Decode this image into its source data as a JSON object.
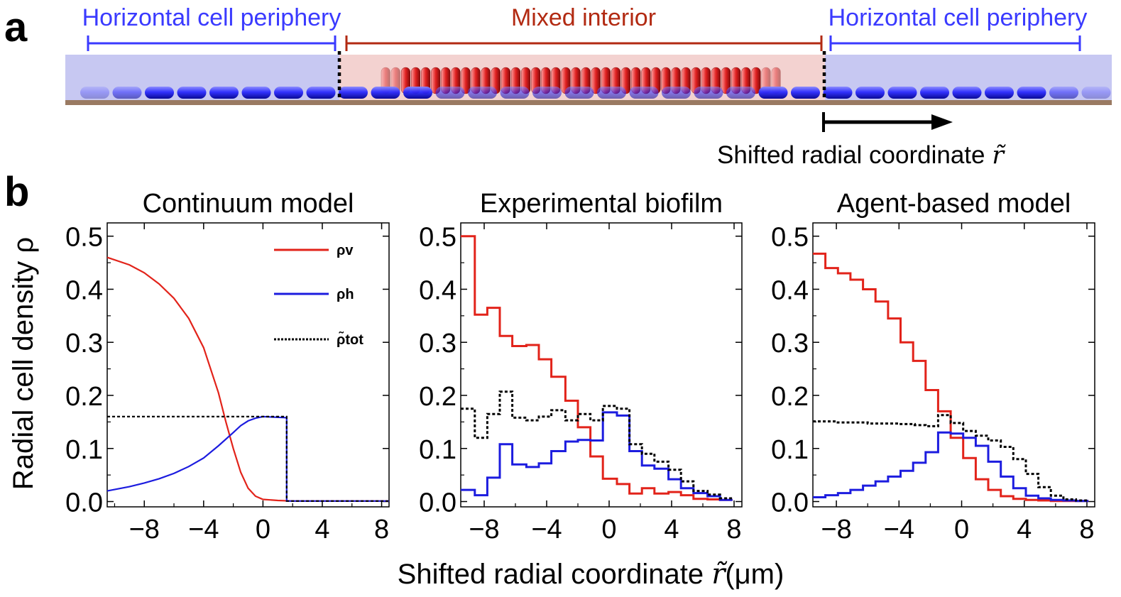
{
  "panel_a": {
    "label": "a",
    "left_region": "Horizontal cell periphery",
    "center_region": "Mixed interior",
    "right_region": "Horizontal cell periphery",
    "arrow_caption": "Shifted radial coordinate",
    "arrow_symbol": "r̃",
    "colors": {
      "periphery": "#3a3aff",
      "interior": "#b22a12",
      "arrow": "#000000"
    }
  },
  "panel_b": {
    "label": "b"
  },
  "shared": {
    "ylabel": "Radial cell density ρ",
    "xlabel": "Shifted radial coordinate",
    "xlabel_symbol": "r̃",
    "xlabel_unit": "(μm)",
    "colors": {
      "vertical": "#e2231a",
      "horizontal": "#1c1cdf",
      "total": "#000000"
    }
  },
  "legend": {
    "items": [
      {
        "name": "vertical",
        "label": "ρv"
      },
      {
        "name": "horizontal",
        "label": "ρh"
      },
      {
        "name": "total",
        "label": "ρ̃tot"
      }
    ]
  },
  "chart_data": [
    {
      "type": "line",
      "title": "Continuum model",
      "xlim": [
        -10.5,
        8.5
      ],
      "ylim": [
        -0.01,
        0.525
      ],
      "xticks": [
        -8,
        -4,
        0,
        4,
        8
      ],
      "xtick_labels": [
        "−8",
        "−4",
        "0",
        "4",
        "8"
      ],
      "yticks": [
        0,
        0.1,
        0.2,
        0.3,
        0.4,
        0.5
      ],
      "ytick_labels": [
        "0.0",
        "0.1",
        "0.2",
        "0.3",
        "0.4",
        "0.5"
      ],
      "series": [
        {
          "name": "rho_v",
          "style": "solid",
          "color": "#e2231a",
          "x": [
            -10.5,
            -9,
            -8,
            -7,
            -6,
            -5,
            -4,
            -3,
            -2.5,
            -2,
            -1.5,
            -1,
            -0.5,
            0,
            1,
            2,
            4,
            8.5
          ],
          "y": [
            0.46,
            0.446,
            0.431,
            0.41,
            0.383,
            0.345,
            0.29,
            0.205,
            0.15,
            0.1,
            0.055,
            0.025,
            0.01,
            0.004,
            0.002,
            0.001,
            0.001,
            0.001
          ]
        },
        {
          "name": "rho_h",
          "style": "solid",
          "color": "#1c1cdf",
          "x": [
            -10.5,
            -9,
            -8,
            -7,
            -6,
            -5,
            -4,
            -3,
            -2,
            -1.5,
            -1,
            -0.5,
            0,
            1.6,
            1.6,
            4,
            8.5
          ],
          "y": [
            0.02,
            0.028,
            0.035,
            0.043,
            0.053,
            0.066,
            0.082,
            0.105,
            0.13,
            0.143,
            0.152,
            0.157,
            0.16,
            0.158,
            0.001,
            0.001,
            0.001
          ]
        },
        {
          "name": "rho_tot",
          "style": "dashed",
          "color": "#000000",
          "x": [
            -10.5,
            1.6,
            1.6,
            8.5
          ],
          "y": [
            0.16,
            0.16,
            0.001,
            0.001
          ]
        }
      ]
    },
    {
      "type": "line",
      "title": "Experimental biofilm",
      "xlim": [
        -9.5,
        8.5
      ],
      "ylim": [
        -0.01,
        0.525
      ],
      "xticks": [
        -8,
        -4,
        0,
        4,
        8
      ],
      "xtick_labels": [
        "−8",
        "−4",
        "0",
        "4",
        "8"
      ],
      "yticks": [
        0,
        0.1,
        0.2,
        0.3,
        0.4,
        0.5
      ],
      "ytick_labels": [
        "0.0",
        "0.1",
        "0.2",
        "0.3",
        "0.4",
        "0.5"
      ],
      "series": [
        {
          "name": "rho_v",
          "style": "step",
          "color": "#e2231a",
          "edges": [
            -9.5,
            -8.6,
            -7.8,
            -7,
            -6.2,
            -5.3,
            -4.5,
            -3.7,
            -2.8,
            -2,
            -1.2,
            -0.4,
            0.5,
            1.3,
            2.1,
            2.9,
            3.8,
            4.6,
            5.4,
            6.3,
            7.1,
            7.9
          ],
          "values": [
            0.5,
            0.352,
            0.365,
            0.312,
            0.293,
            0.295,
            0.268,
            0.235,
            0.19,
            0.14,
            0.085,
            0.043,
            0.033,
            0.015,
            0.025,
            0.015,
            0.018,
            0.012,
            0.005,
            0.004,
            0.003
          ]
        },
        {
          "name": "rho_h",
          "style": "step",
          "color": "#1c1cdf",
          "edges": [
            -9.5,
            -8.6,
            -7.8,
            -7,
            -6.2,
            -5.3,
            -4.5,
            -3.7,
            -2.8,
            -2,
            -1.2,
            -0.4,
            0.5,
            1.3,
            2.1,
            2.9,
            3.8,
            4.6,
            5.4,
            6.3,
            7.1,
            7.9
          ],
          "values": [
            0.022,
            0.012,
            0.045,
            0.108,
            0.07,
            0.065,
            0.072,
            0.095,
            0.113,
            0.116,
            0.115,
            0.168,
            0.162,
            0.095,
            0.068,
            0.062,
            0.042,
            0.025,
            0.016,
            0.01,
            0.003
          ]
        },
        {
          "name": "rho_tot",
          "style": "dashed-step",
          "color": "#000000",
          "edges": [
            -9.5,
            -8.6,
            -7.8,
            -7,
            -6.2,
            -5.3,
            -4.5,
            -3.7,
            -2.8,
            -2,
            -1.2,
            -0.4,
            0.5,
            1.3,
            2.1,
            2.9,
            3.8,
            4.6,
            5.4,
            6.3,
            7.1,
            7.9
          ],
          "values": [
            0.175,
            0.12,
            0.165,
            0.207,
            0.158,
            0.153,
            0.16,
            0.172,
            0.153,
            0.165,
            0.153,
            0.18,
            0.175,
            0.108,
            0.09,
            0.075,
            0.06,
            0.038,
            0.02,
            0.013,
            0.006
          ]
        }
      ]
    },
    {
      "type": "line",
      "title": "Agent-based model",
      "xlim": [
        -9.5,
        8.5
      ],
      "ylim": [
        -0.01,
        0.525
      ],
      "xticks": [
        -8,
        -4,
        0,
        4,
        8
      ],
      "xtick_labels": [
        "−8",
        "−4",
        "0",
        "4",
        "8"
      ],
      "yticks": [
        0,
        0.1,
        0.2,
        0.3,
        0.4,
        0.5
      ],
      "ytick_labels": [
        "0.0",
        "0.1",
        "0.2",
        "0.3",
        "0.4",
        "0.5"
      ],
      "series": [
        {
          "name": "rho_v",
          "style": "step",
          "color": "#e2231a",
          "edges": [
            -9.5,
            -8.7,
            -7.9,
            -7.1,
            -6.3,
            -5.5,
            -4.7,
            -3.9,
            -3.1,
            -2.3,
            -1.5,
            -0.7,
            0.1,
            0.9,
            1.7,
            2.5,
            3.3,
            4.1,
            4.9,
            5.7,
            6.5,
            7.3,
            8.1
          ],
          "values": [
            0.467,
            0.44,
            0.43,
            0.418,
            0.4,
            0.377,
            0.345,
            0.3,
            0.265,
            0.21,
            0.17,
            0.12,
            0.082,
            0.042,
            0.022,
            0.01,
            0.005,
            0.003,
            0.002,
            0.001,
            0.001,
            0.001
          ]
        },
        {
          "name": "rho_h",
          "style": "step",
          "color": "#1c1cdf",
          "edges": [
            -9.5,
            -8.7,
            -7.9,
            -7.1,
            -6.3,
            -5.5,
            -4.7,
            -3.9,
            -3.1,
            -2.3,
            -1.5,
            -0.7,
            0.1,
            0.9,
            1.7,
            2.5,
            3.3,
            4.1,
            4.9,
            5.7,
            6.5,
            7.3,
            8.1
          ],
          "values": [
            0.008,
            0.012,
            0.016,
            0.022,
            0.03,
            0.038,
            0.047,
            0.058,
            0.073,
            0.093,
            0.13,
            0.128,
            0.12,
            0.105,
            0.075,
            0.047,
            0.025,
            0.011,
            0.006,
            0.003,
            0.002,
            0.001
          ]
        },
        {
          "name": "rho_tot",
          "style": "dashed-step",
          "color": "#000000",
          "x": [
            -9.5,
            -8,
            -6,
            -4,
            -3,
            -2.3,
            -1.5,
            -0.7,
            0.1,
            0.9,
            1.7,
            2.5,
            3.3,
            4.1,
            4.9,
            5.7,
            6.5,
            7.3,
            8.1
          ],
          "y": [
            0.151,
            0.149,
            0.147,
            0.146,
            0.144,
            0.142,
            0.163,
            0.148,
            0.133,
            0.124,
            0.115,
            0.103,
            0.08,
            0.052,
            0.027,
            0.011,
            0.004,
            0.002,
            0.001
          ]
        }
      ]
    }
  ]
}
